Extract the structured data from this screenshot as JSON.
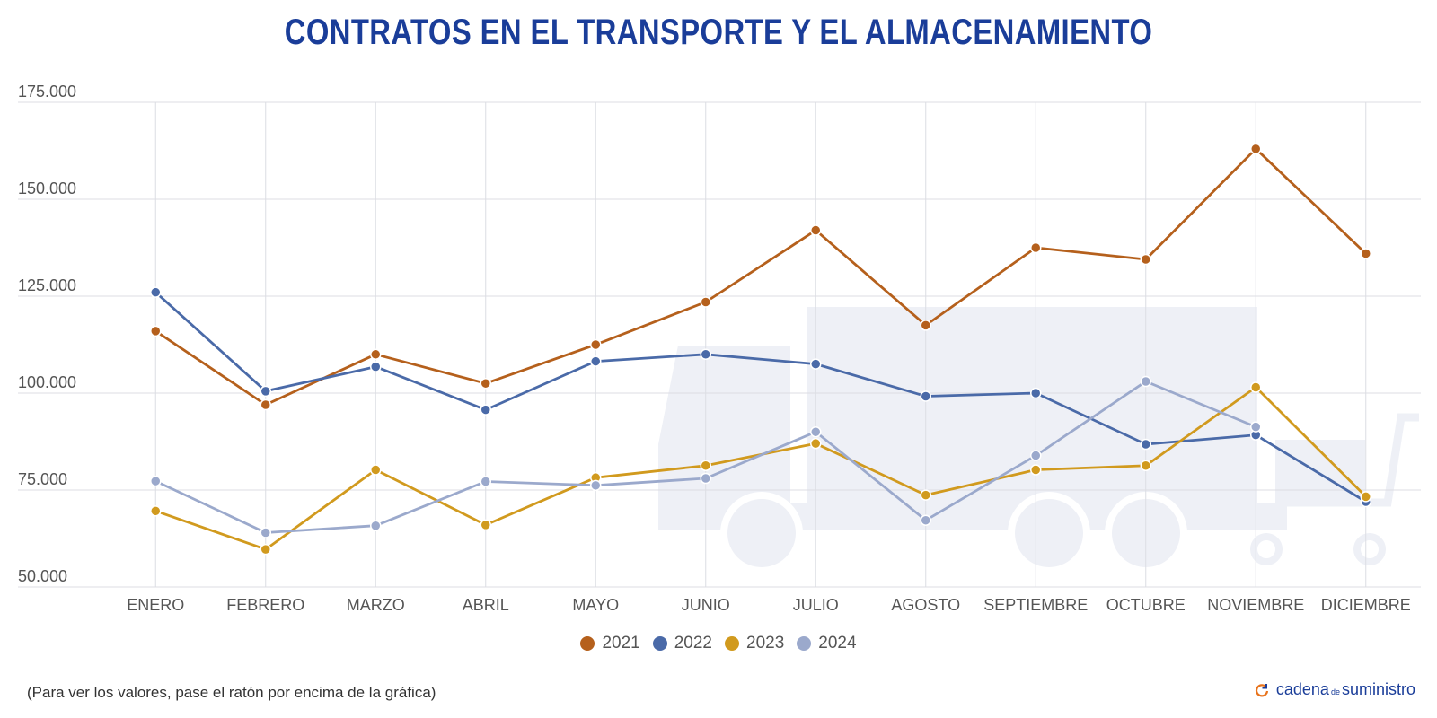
{
  "title": "CONTRATOS EN EL TRANSPORTE Y EL ALMACENAMIENTO",
  "footnote": "(Para ver los valores, pase el ratón por encima de la gráfica)",
  "brand": {
    "part1": "cadena",
    "part2": "de",
    "part3": "suministro",
    "icon": "refresh-icon"
  },
  "colors": {
    "grid": "#dcdde3",
    "watermark": "#eef0f6"
  },
  "chart_data": {
    "type": "line",
    "title": "CONTRATOS EN EL TRANSPORTE Y EL ALMACENAMIENTO",
    "xlabel": "",
    "ylabel": "",
    "categories": [
      "ENERO",
      "FEBRERO",
      "MARZO",
      "ABRIL",
      "MAYO",
      "JUNIO",
      "JULIO",
      "AGOSTO",
      "SEPTIEMBRE",
      "OCTUBRE",
      "NOVIEMBRE",
      "DICIEMBRE"
    ],
    "ylim": [
      50000,
      175000
    ],
    "yticks": [
      50000,
      75000,
      100000,
      125000,
      150000,
      175000
    ],
    "ytick_labels": [
      "50.000",
      "75.000",
      "100.000",
      "125.000",
      "150.000",
      "175.000"
    ],
    "grid": true,
    "legend_position": "bottom-center",
    "series": [
      {
        "name": "2021",
        "color": "#b5601c",
        "values": [
          116000,
          97000,
          110000,
          102500,
          112500,
          123500,
          142000,
          117500,
          137500,
          134500,
          163000,
          136000
        ]
      },
      {
        "name": "2022",
        "color": "#4a6aa8",
        "values": [
          126000,
          100500,
          106800,
          95700,
          108200,
          110000,
          107500,
          99200,
          100000,
          86800,
          89200,
          72000
        ]
      },
      {
        "name": "2023",
        "color": "#d19a1e",
        "values": [
          69600,
          59700,
          80200,
          66000,
          78200,
          81300,
          87000,
          73700,
          80200,
          81300,
          101500,
          73300
        ]
      },
      {
        "name": "2024",
        "color": "#9ba9cc",
        "values": [
          77300,
          64000,
          65800,
          77200,
          76200,
          78000,
          90000,
          67200,
          83900,
          103000,
          91300,
          null
        ]
      }
    ]
  }
}
